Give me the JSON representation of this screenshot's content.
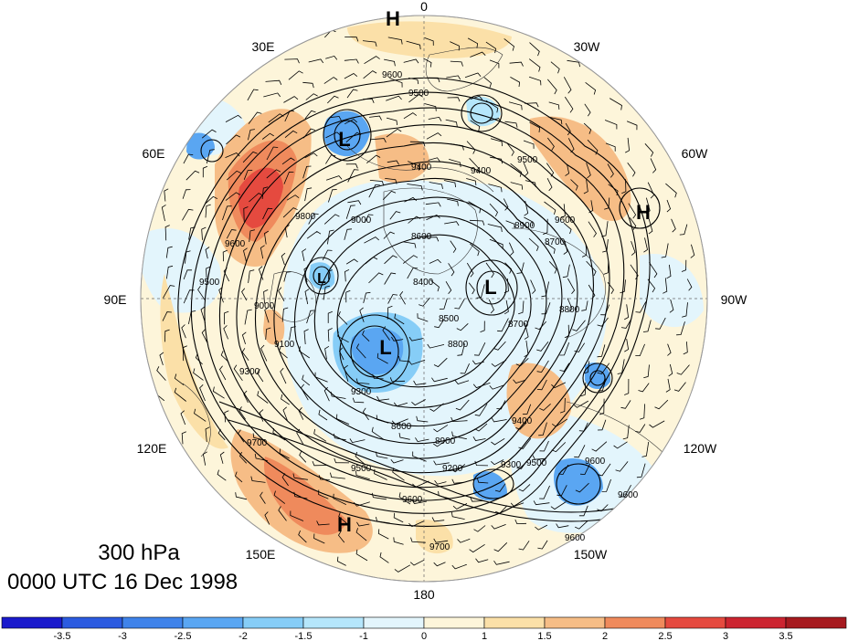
{
  "level_label": "300 hPa",
  "time_label": "0000 UTC 16 Dec 1998",
  "longitude_labels": [
    "0",
    "30W",
    "60W",
    "90W",
    "120W",
    "150W",
    "180",
    "150E",
    "120E",
    "90E",
    "60E",
    "30E"
  ],
  "contour_labels": [
    "9600",
    "9500",
    "9400",
    "9400",
    "9500",
    "8600",
    "8900",
    "9000",
    "9600",
    "9800",
    "8400",
    "8500",
    "8700",
    "8600",
    "9300",
    "8900",
    "9200",
    "9300",
    "9500",
    "9400",
    "9600",
    "9700",
    "9500",
    "9600",
    "9700",
    "9600",
    "9500",
    "9600",
    "8800",
    "9100",
    "9300",
    "9600",
    "9000",
    "8800",
    "8700"
  ],
  "centers": [
    {
      "type": "H",
      "label": "H"
    },
    {
      "type": "L",
      "label": "L"
    },
    {
      "type": "H",
      "label": "H"
    },
    {
      "type": "L",
      "label": "L"
    },
    {
      "type": "L",
      "label": "L"
    },
    {
      "type": "L",
      "label": "L"
    },
    {
      "type": "H",
      "label": "H"
    }
  ],
  "colorbar": {
    "labels": [
      "-3.5",
      "-3",
      "-2.5",
      "-2",
      "-1.5",
      "-1",
      "0",
      "1",
      "1.5",
      "2",
      "2.5",
      "3",
      "3.5"
    ],
    "colors": [
      "#1a1acc",
      "#2b5be0",
      "#3f83ea",
      "#5aa6f2",
      "#86cdf7",
      "#b5e6fb",
      "#e3f5fc",
      "#fdf5da",
      "#fbe0a8",
      "#f6bd86",
      "#ef8a5c",
      "#e54a3f",
      "#cc2430",
      "#a61a1f"
    ]
  }
}
